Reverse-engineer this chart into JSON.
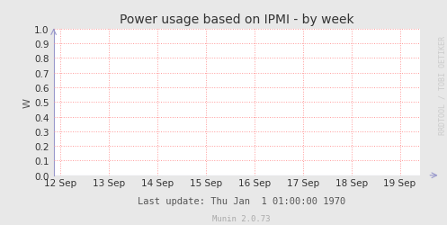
{
  "title": "Power usage based on IPMI - by week",
  "ylabel": "W",
  "ylim": [
    0.0,
    1.0
  ],
  "yticks": [
    0.0,
    0.1,
    0.2,
    0.3,
    0.4,
    0.5,
    0.6,
    0.7,
    0.8,
    0.9,
    1.0
  ],
  "xtick_labels": [
    "12 Sep",
    "13 Sep",
    "14 Sep",
    "15 Sep",
    "16 Sep",
    "17 Sep",
    "18 Sep",
    "19 Sep"
  ],
  "footer_text": "Last update: Thu Jan  1 01:00:00 1970",
  "footer_sub": "Munin 2.0.73",
  "watermark": "RRDTOOL / TOBI OETIKER",
  "bg_color": "#e8e8e8",
  "plot_bg_color": "#ffffff",
  "grid_color": "#ff9999",
  "title_color": "#333333",
  "axis_color": "#555555",
  "tick_color": "#333333",
  "footer_color": "#555555",
  "footer_sub_color": "#aaaaaa",
  "watermark_color": "#cccccc",
  "arrow_color": "#9999cc",
  "title_fontsize": 10,
  "axis_label_fontsize": 8,
  "tick_fontsize": 7.5,
  "footer_fontsize": 7.5,
  "footer_sub_fontsize": 6.5,
  "watermark_fontsize": 6
}
